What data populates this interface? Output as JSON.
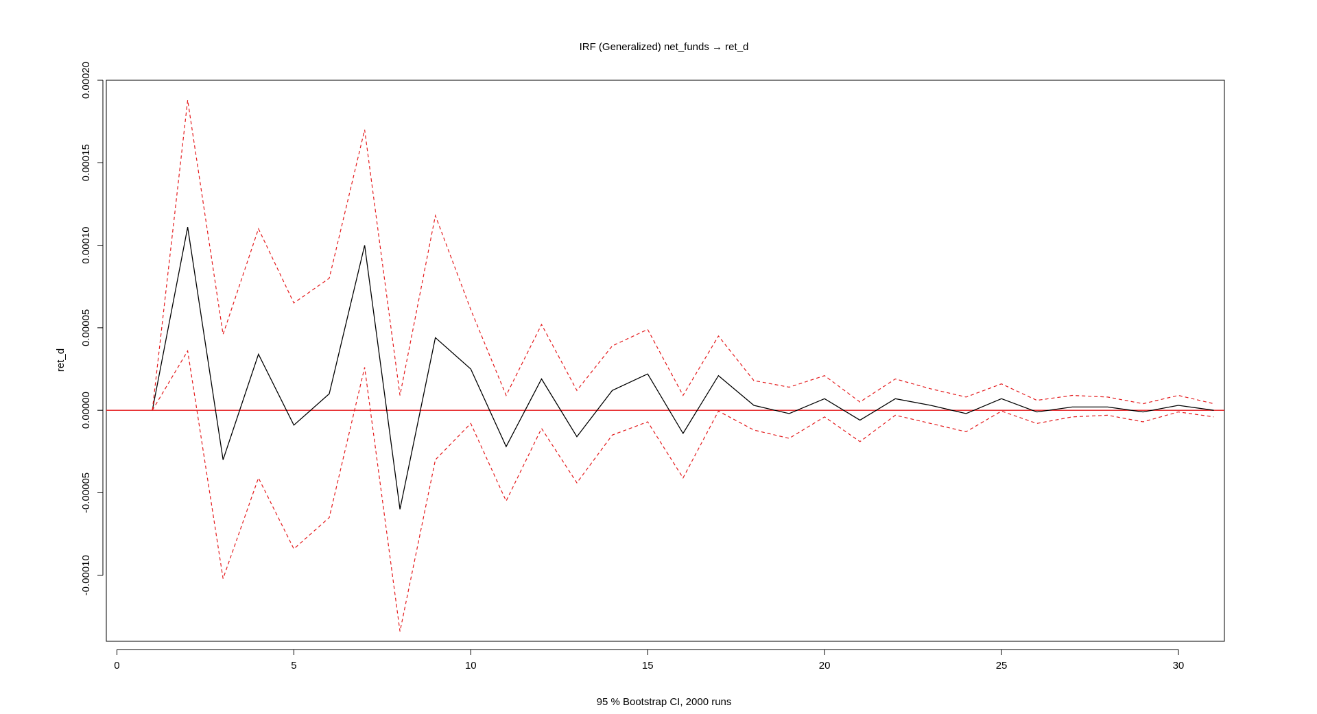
{
  "chart_data": {
    "type": "line",
    "title": "IRF (Generalized) net_funds → ret_d",
    "xlabel": "95 % Bootstrap CI,  2000 runs",
    "ylabel": "ret_d",
    "xlim": [
      -0.3,
      31.3
    ],
    "ylim": [
      -0.00014,
      0.0002
    ],
    "x_ticks": [
      0,
      5,
      10,
      15,
      20,
      25,
      30
    ],
    "x_tick_labels": [
      "0",
      "5",
      "10",
      "15",
      "20",
      "25",
      "30"
    ],
    "y_ticks": [
      -0.0001,
      -5e-05,
      0,
      5e-05,
      0.0001,
      0.00015,
      0.0002
    ],
    "y_tick_labels": [
      "-0.00010",
      "-0.00005",
      "0.00000",
      "0.00005",
      "0.00010",
      "0.00015",
      "0.00020"
    ],
    "grid": false,
    "x": [
      1,
      2,
      3,
      4,
      5,
      6,
      7,
      8,
      9,
      10,
      11,
      12,
      13,
      14,
      15,
      16,
      17,
      18,
      19,
      20,
      21,
      22,
      23,
      24,
      25,
      26,
      27,
      28,
      29,
      30,
      31
    ],
    "series": [
      {
        "role": "irf",
        "color": "#000000",
        "dashed": false,
        "values": [
          0,
          0.000111,
          -3e-05,
          3.4e-05,
          -9e-06,
          1e-05,
          0.0001,
          -6e-05,
          4.4e-05,
          2.5e-05,
          -2.2e-05,
          1.9e-05,
          -1.6e-05,
          1.2e-05,
          2.2e-05,
          -1.4e-05,
          2.1e-05,
          3e-06,
          -2e-06,
          7e-06,
          -6e-06,
          7e-06,
          3e-06,
          -2e-06,
          7e-06,
          -1e-06,
          2e-06,
          2e-06,
          -1e-06,
          3e-06,
          0
        ]
      },
      {
        "role": "upper-ci",
        "color": "#e41a1c",
        "dashed": true,
        "values": [
          0,
          0.000188,
          4.6e-05,
          0.00011,
          6.5e-05,
          8e-05,
          0.00017,
          9e-06,
          0.000118,
          6.1e-05,
          9e-06,
          5.2e-05,
          1.2e-05,
          3.9e-05,
          4.9e-05,
          9e-06,
          4.5e-05,
          1.8e-05,
          1.4e-05,
          2.1e-05,
          5e-06,
          1.9e-05,
          1.3e-05,
          8e-06,
          1.6e-05,
          6e-06,
          9e-06,
          8e-06,
          4e-06,
          9e-06,
          4e-06
        ]
      },
      {
        "role": "lower-ci",
        "color": "#e41a1c",
        "dashed": true,
        "values": [
          0,
          3.6e-05,
          -0.000102,
          -4.1e-05,
          -8.4e-05,
          -6.5e-05,
          2.6e-05,
          -0.000134,
          -3e-05,
          -8e-06,
          -5.5e-05,
          -1.1e-05,
          -4.4e-05,
          -1.5e-05,
          -7e-06,
          -4.1e-05,
          -5e-07,
          -1.2e-05,
          -1.7e-05,
          -4e-06,
          -1.9e-05,
          -3e-06,
          -8e-06,
          -1.3e-05,
          -5e-07,
          -8e-06,
          -4e-06,
          -3e-06,
          -7e-06,
          -1e-06,
          -4e-06
        ]
      }
    ],
    "zero_line": {
      "y": 0,
      "color": "#e41a1c"
    }
  }
}
